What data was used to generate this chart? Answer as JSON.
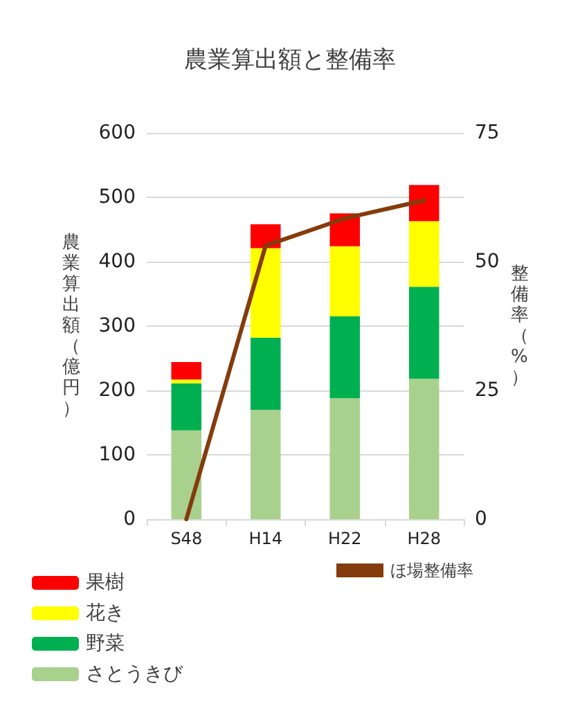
{
  "chart_data": {
    "type": "bar",
    "title": "農業算出額と整備率",
    "categories": [
      "S48",
      "H14",
      "H22",
      "H28"
    ],
    "stacked": true,
    "ylabel": "農業算出額（億円）",
    "y2label": "整備率（%）",
    "series": [
      {
        "name": "さとうきび",
        "color": "#a9d18e",
        "values": [
          138,
          170,
          188,
          218
        ]
      },
      {
        "name": "野菜",
        "color": "#00b050",
        "values": [
          73,
          112,
          127,
          143
        ]
      },
      {
        "name": "花き",
        "color": "#ffff00",
        "values": [
          6,
          139,
          109,
          102
        ]
      },
      {
        "name": "果樹",
        "color": "#ff0000",
        "values": [
          27,
          37,
          51,
          56
        ]
      },
      {
        "name": "ほ場整備率",
        "type": "line",
        "axis": "y2",
        "color": "#843c0c",
        "values": [
          0,
          53.1,
          58.4,
          61.9
        ]
      }
    ],
    "ylim": [
      0,
      600
    ],
    "yticks": [
      0,
      100,
      200,
      300,
      400,
      500,
      600
    ],
    "y2lim": [
      0,
      75
    ],
    "y2ticks": [
      0,
      25,
      50,
      75
    ],
    "grid": "y",
    "legend": "bottom",
    "marker": "none",
    "line_style": "solid"
  }
}
